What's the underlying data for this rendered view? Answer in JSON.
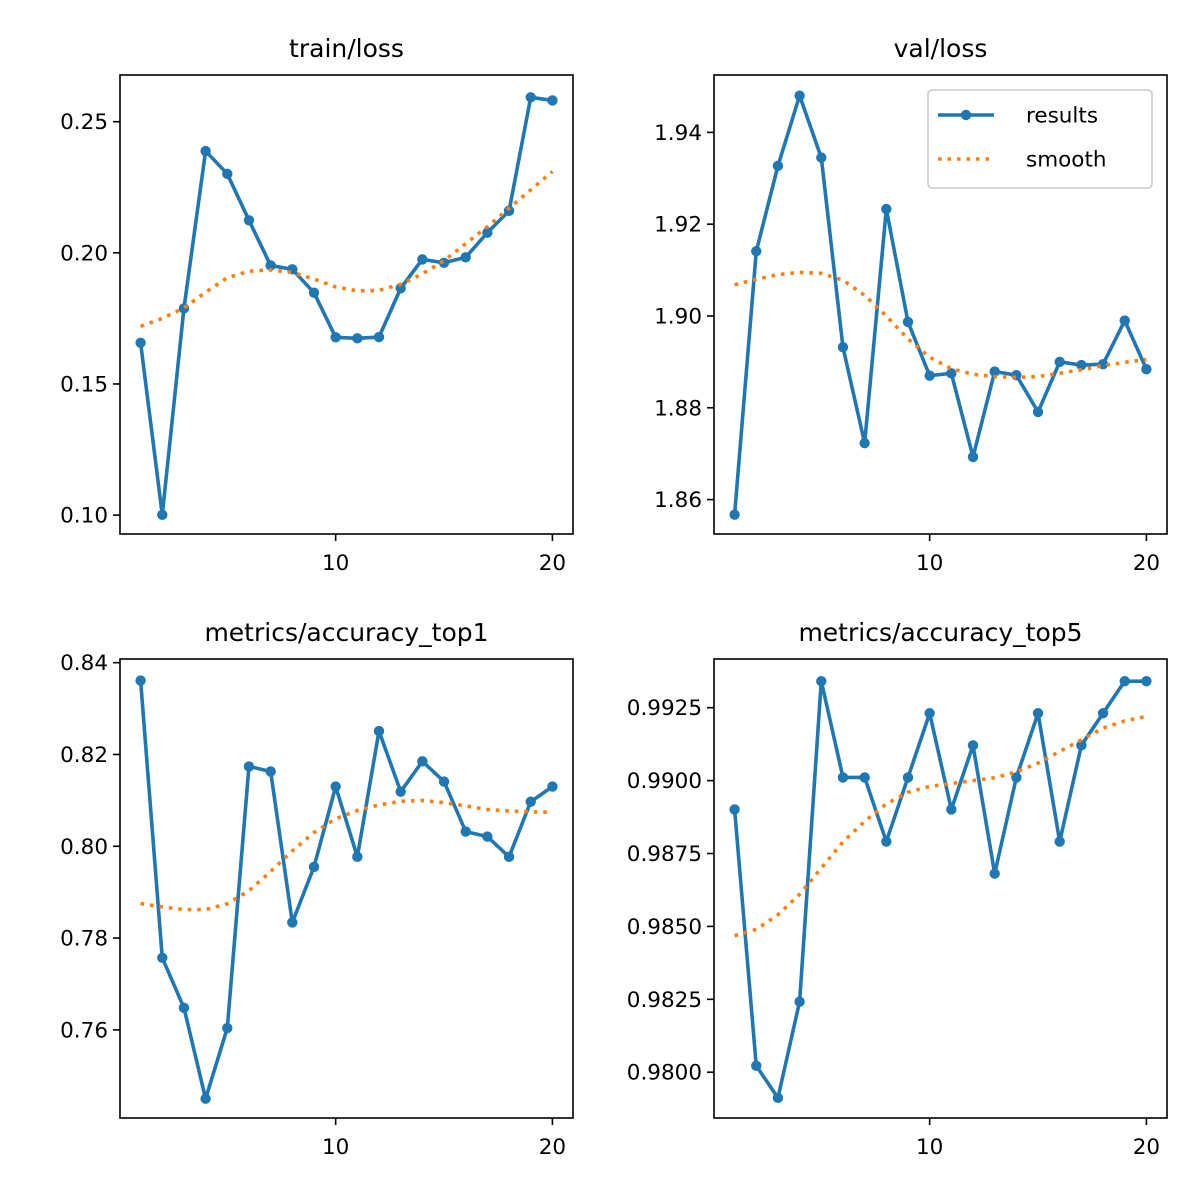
{
  "figure": {
    "colors": {
      "results": "#1f77b4",
      "smooth": "#ff7f0e",
      "axes": "#000000",
      "background": "#ffffff"
    }
  },
  "chart_data": [
    {
      "type": "line",
      "title": "train/loss",
      "x": [
        1,
        2,
        3,
        4,
        5,
        6,
        7,
        8,
        9,
        10,
        11,
        12,
        13,
        14,
        15,
        16,
        17,
        18,
        19,
        20
      ],
      "xticks": [
        10,
        20
      ],
      "xlim": [
        0.05,
        20.95
      ],
      "ylim": [
        0.0928,
        0.2678
      ],
      "yticks": [
        0.1,
        0.15,
        0.2,
        0.25
      ],
      "ytick_labels": [
        "0.10",
        "0.15",
        "0.20",
        "0.25"
      ],
      "grid": false,
      "series": [
        {
          "name": "results",
          "style": "solid-marker",
          "values": [
            0.1657,
            0.1001,
            0.1788,
            0.2388,
            0.2301,
            0.2124,
            0.1952,
            0.1937,
            0.1848,
            0.1678,
            0.1674,
            0.1679,
            0.1865,
            0.1975,
            0.1962,
            0.1983,
            0.2077,
            0.216,
            0.2593,
            0.2581
          ]
        },
        {
          "name": "smooth",
          "style": "dotted",
          "values": [
            0.172,
            0.175,
            0.179,
            0.185,
            0.1905,
            0.193,
            0.1935,
            0.1925,
            0.19,
            0.187,
            0.1855,
            0.1857,
            0.188,
            0.192,
            0.197,
            0.2035,
            0.21,
            0.217,
            0.224,
            0.231
          ]
        }
      ]
    },
    {
      "type": "line",
      "title": "val/loss",
      "x": [
        1,
        2,
        3,
        4,
        5,
        6,
        7,
        8,
        9,
        10,
        11,
        12,
        13,
        14,
        15,
        16,
        17,
        18,
        19,
        20
      ],
      "xticks": [
        10,
        20
      ],
      "xlim": [
        0.05,
        20.95
      ],
      "ylim": [
        1.8525,
        1.9525
      ],
      "yticks": [
        1.86,
        1.88,
        1.9,
        1.92,
        1.94
      ],
      "ytick_labels": [
        "1.86",
        "1.88",
        "1.90",
        "1.92",
        "1.94"
      ],
      "grid": false,
      "legend": {
        "placement": "top-right",
        "entries": [
          "results",
          "smooth"
        ]
      },
      "series": [
        {
          "name": "results",
          "style": "solid-marker",
          "values": [
            1.8567,
            1.9141,
            1.9327,
            1.948,
            1.9345,
            1.8932,
            1.8723,
            1.9233,
            1.8987,
            1.887,
            1.8875,
            1.8693,
            1.8879,
            1.8871,
            1.8791,
            1.89,
            1.8893,
            1.8895,
            1.899,
            1.8884
          ]
        },
        {
          "name": "smooth",
          "style": "dotted",
          "values": [
            1.9068,
            1.908,
            1.909,
            1.9095,
            1.9093,
            1.9078,
            1.9045,
            1.9,
            1.895,
            1.891,
            1.8885,
            1.8873,
            1.8868,
            1.8866,
            1.8868,
            1.8875,
            1.8883,
            1.8892,
            1.8899,
            1.8905
          ]
        }
      ]
    },
    {
      "type": "line",
      "title": "metrics/accuracy_top1",
      "x": [
        1,
        2,
        3,
        4,
        5,
        6,
        7,
        8,
        9,
        10,
        11,
        12,
        13,
        14,
        15,
        16,
        17,
        18,
        19,
        20
      ],
      "xticks": [
        10,
        20
      ],
      "xlim": [
        0.05,
        20.95
      ],
      "ylim": [
        0.7408,
        0.8408
      ],
      "yticks": [
        0.76,
        0.78,
        0.8,
        0.82,
        0.84
      ],
      "ytick_labels": [
        "0.76",
        "0.78",
        "0.80",
        "0.82",
        "0.84"
      ],
      "grid": false,
      "series": [
        {
          "name": "results",
          "style": "solid-marker",
          "values": [
            0.8361,
            0.7757,
            0.7648,
            0.745,
            0.7604,
            0.8174,
            0.8163,
            0.7834,
            0.7955,
            0.813,
            0.7977,
            0.8251,
            0.8119,
            0.8185,
            0.8141,
            0.8032,
            0.8021,
            0.7977,
            0.8097,
            0.813
          ]
        },
        {
          "name": "smooth",
          "style": "dotted",
          "values": [
            0.7875,
            0.7868,
            0.7862,
            0.7862,
            0.7875,
            0.7903,
            0.7945,
            0.799,
            0.803,
            0.806,
            0.8078,
            0.809,
            0.8098,
            0.81,
            0.8095,
            0.8088,
            0.808,
            0.8077,
            0.8075,
            0.8074
          ]
        }
      ]
    },
    {
      "type": "line",
      "title": "metrics/accuracy_top5",
      "x": [
        1,
        2,
        3,
        4,
        5,
        6,
        7,
        8,
        9,
        10,
        11,
        12,
        13,
        14,
        15,
        16,
        17,
        18,
        19,
        20
      ],
      "xticks": [
        10,
        20
      ],
      "xlim": [
        0.05,
        20.95
      ],
      "ylim": [
        0.97843,
        0.99417
      ],
      "yticks": [
        0.98,
        0.9825,
        0.985,
        0.9875,
        0.99,
        0.9925
      ],
      "ytick_labels": [
        "0.9800",
        "0.9825",
        "0.9850",
        "0.9875",
        "0.9900",
        "0.9925"
      ],
      "grid": false,
      "series": [
        {
          "name": "results",
          "style": "solid-marker",
          "values": [
            0.98901,
            0.98022,
            0.97912,
            0.98242,
            0.99341,
            0.99011,
            0.99011,
            0.98791,
            0.99011,
            0.99231,
            0.98901,
            0.99121,
            0.98681,
            0.99011,
            0.99231,
            0.98791,
            0.99121,
            0.99231,
            0.99341,
            0.99341
          ]
        },
        {
          "name": "smooth",
          "style": "dotted",
          "values": [
            0.98468,
            0.9849,
            0.9854,
            0.9861,
            0.987,
            0.9879,
            0.9886,
            0.9892,
            0.9896,
            0.9898,
            0.9899,
            0.99,
            0.9901,
            0.9903,
            0.9906,
            0.991,
            0.9914,
            0.9918,
            0.99205,
            0.9922
          ]
        }
      ]
    }
  ]
}
